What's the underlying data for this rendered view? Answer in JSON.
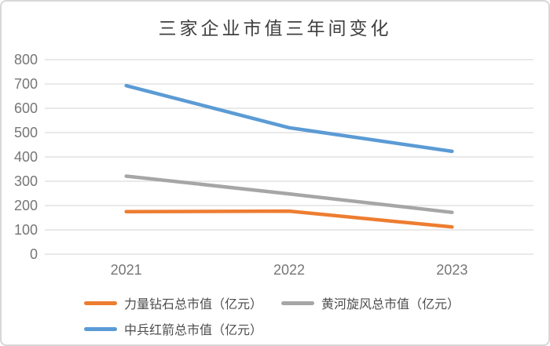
{
  "chart_data": {
    "type": "line",
    "title": "三家企业市值三年间变化",
    "categories": [
      "2021",
      "2022",
      "2023"
    ],
    "series": [
      {
        "name": "力量钻石总市值（亿元）",
        "values": [
          175,
          177,
          112
        ],
        "color": "#ED7D31"
      },
      {
        "name": "黄河旋风总市值（亿元）",
        "values": [
          321,
          248,
          172
        ],
        "color": "#A6A6A6"
      },
      {
        "name": "中兵红箭总市值（亿元）",
        "values": [
          693,
          520,
          423
        ],
        "color": "#5B9BD5"
      }
    ],
    "xlabel": "",
    "ylabel": "",
    "ylim": [
      0,
      800
    ],
    "ytick_step": 100,
    "yticks": [
      "0",
      "100",
      "200",
      "300",
      "400",
      "500",
      "600",
      "700",
      "800"
    ],
    "grid": true,
    "legend_position": "bottom"
  },
  "colors": {
    "background": "#FFFFFF",
    "frame_border": "#D7D7D7",
    "grid": "#E2E2E2",
    "axis_text": "#767676",
    "title_text": "#3F3F3F",
    "legend_text": "#4D4D4D"
  }
}
